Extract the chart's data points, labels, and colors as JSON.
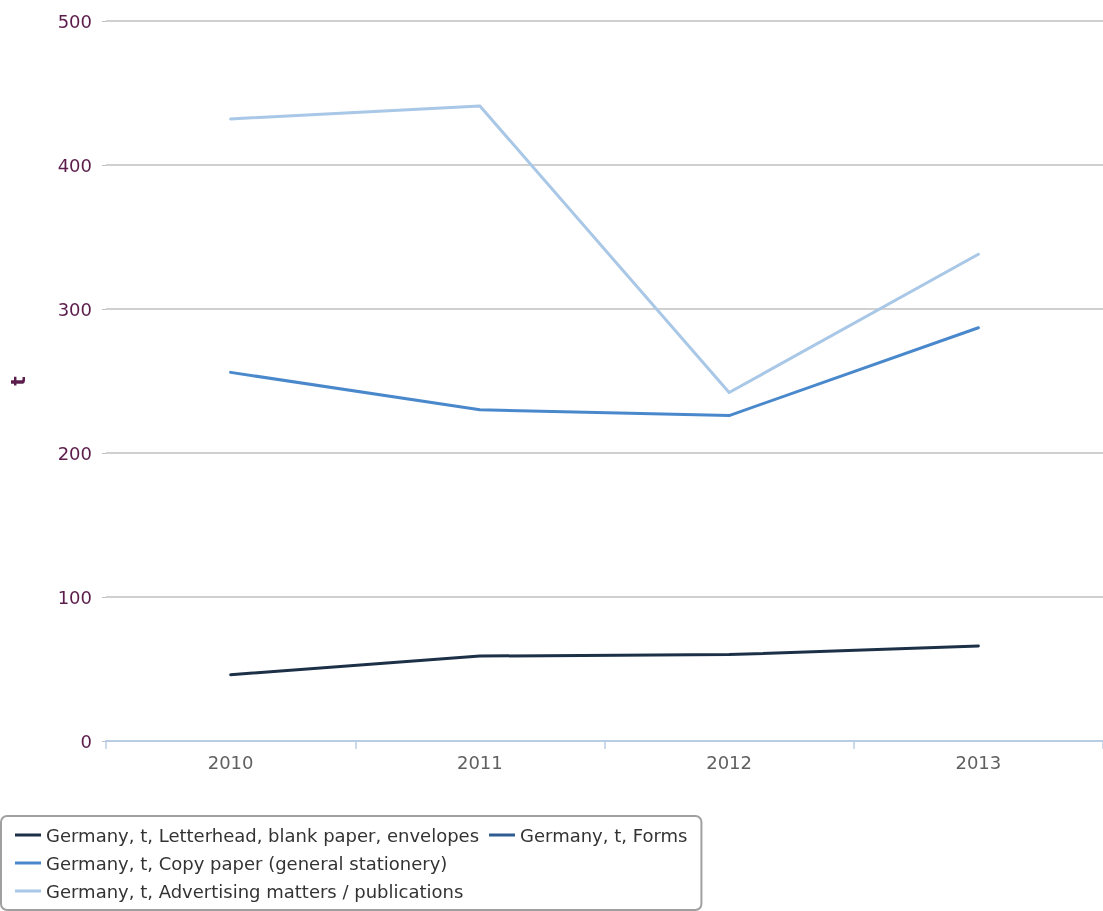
{
  "chart_data": {
    "type": "line",
    "ylabel": "t",
    "categories": [
      "2010",
      "2011",
      "2012",
      "2013"
    ],
    "series": [
      {
        "name": "Germany, t, Letterhead, blank paper, envelopes",
        "color": "#1c3147",
        "values": [
          46,
          59,
          60,
          66
        ]
      },
      {
        "name": "Germany, t, Forms",
        "color": "#2f5c93",
        "values": [
          null,
          null,
          null,
          null
        ]
      },
      {
        "name": "Germany, t, Copy paper (general stationery)",
        "color": "#4a88cc",
        "values": [
          256,
          230,
          226,
          287
        ]
      },
      {
        "name": "Germany, t, Advertising matters / publications",
        "color": "#a9c7e6",
        "values": [
          432,
          441,
          242,
          338
        ]
      }
    ],
    "ylim": [
      0,
      500
    ],
    "yticks": [
      0,
      100,
      200,
      300,
      400,
      500
    ],
    "grid": "y",
    "legend": "bottom",
    "line_style": "solid",
    "marker": "none"
  }
}
